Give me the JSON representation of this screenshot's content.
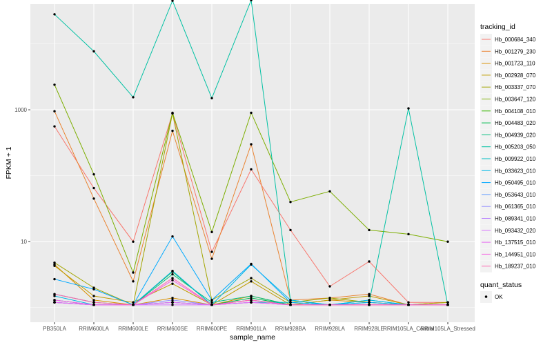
{
  "chart_data": {
    "type": "line",
    "xlabel": "sample_name",
    "ylabel": "FPKM + 1",
    "y_scale": "log10",
    "ylim": [
      0.6,
      40000
    ],
    "y_ticks": [
      10,
      1000
    ],
    "grid": true,
    "legend_placement": "right",
    "categories": [
      "PB350LA",
      "RRIM600LA",
      "RRIM600LE",
      "RRIM600SE",
      "RRIM600PE",
      "RRIM901LA",
      "RRIM928BA",
      "RRIM928LA",
      "RRIM928LE",
      "RRIM105LA_Control",
      "RRIM105LA_Stressed"
    ],
    "legend": {
      "tracking_id": {
        "title": "tracking_id",
        "entries": [
          "Hb_000684_340",
          "Hb_001279_230",
          "Hb_001723_110",
          "Hb_002928_070",
          "Hb_003337_070",
          "Hb_003647_120",
          "Hb_004108_010",
          "Hb_004483_020",
          "Hb_004939_020",
          "Hb_005203_050",
          "Hb_009922_010",
          "Hb_033623_010",
          "Hb_050495_010",
          "Hb_053643_010",
          "Hb_061365_010",
          "Hb_089341_010",
          "Hb_093432_020",
          "Hb_137515_010",
          "Hb_144951_010",
          "Hb_189237_010"
        ]
      },
      "quant_status": {
        "title": "quant_status",
        "entries": [
          "OK"
        ]
      }
    },
    "series": [
      {
        "name": "Hb_000684_340",
        "color": "#F8766D",
        "values": [
          560,
          65,
          10,
          880,
          7,
          125,
          15,
          2.1,
          5,
          1.2,
          1.2
        ]
      },
      {
        "name": "Hb_001279_230",
        "color": "#EA8331",
        "values": [
          950,
          45,
          2.5,
          480,
          5.5,
          300,
          1.3,
          1.4,
          1.6,
          1.1,
          1.2
        ]
      },
      {
        "name": "Hb_001723_110",
        "color": "#D89000",
        "values": [
          4.5,
          1.3,
          1.1,
          1.4,
          1.1,
          1.5,
          1.1,
          1.3,
          1.2,
          1.1,
          1.1
        ]
      },
      {
        "name": "Hb_002928_070",
        "color": "#C09B00",
        "values": [
          4.3,
          1.5,
          1.2,
          2.3,
          1.1,
          2.5,
          1.1,
          1.3,
          1.5,
          1.1,
          1.2
        ]
      },
      {
        "name": "Hb_003337_070",
        "color": "#A3A500",
        "values": [
          4.8,
          2.0,
          1.1,
          880,
          1.3,
          2.8,
          1.2,
          1.4,
          1.2,
          1.1,
          1.2
        ]
      },
      {
        "name": "Hb_003647_120",
        "color": "#7CAE00",
        "values": [
          2400,
          105,
          3.4,
          900,
          14,
          900,
          40,
          58,
          15,
          13,
          10
        ]
      },
      {
        "name": "Hb_004108_010",
        "color": "#39B600",
        "values": [
          1.2,
          1.1,
          1.1,
          1.2,
          1.1,
          1.3,
          1.1,
          1.1,
          1.1,
          1.1,
          1.1
        ]
      },
      {
        "name": "Hb_004483_020",
        "color": "#00BB4E",
        "values": [
          1.3,
          1.1,
          1.1,
          3.5,
          1.1,
          1.4,
          1.1,
          1.1,
          1.1,
          1.1,
          1.1
        ]
      },
      {
        "name": "Hb_004939_020",
        "color": "#00BF7D",
        "values": [
          1.6,
          1.2,
          1.1,
          3.2,
          1.2,
          1.5,
          1.1,
          1.1,
          1.1,
          1.1,
          1.1
        ]
      },
      {
        "name": "Hb_005203_050",
        "color": "#00C1A3",
        "values": [
          28000,
          7700,
          1550,
          45000,
          1500,
          46000,
          1.3,
          1.1,
          1.2,
          1050,
          1.1
        ]
      },
      {
        "name": "Hb_009922_010",
        "color": "#00BFC4",
        "values": [
          1.2,
          1.1,
          1.1,
          1.2,
          1.1,
          1.2,
          1.2,
          1.1,
          1.3,
          1.1,
          1.1
        ]
      },
      {
        "name": "Hb_033623_010",
        "color": "#00B8E7",
        "values": [
          1.5,
          1.1,
          1.1,
          3.6,
          1.1,
          4.5,
          1.3,
          1.1,
          1.3,
          1.1,
          1.1
        ]
      },
      {
        "name": "Hb_050495_010",
        "color": "#00A9FF",
        "values": [
          2.7,
          1.9,
          1.1,
          12,
          1.3,
          4.6,
          1.2,
          1.1,
          1.2,
          1.1,
          1.1
        ]
      },
      {
        "name": "Hb_053643_010",
        "color": "#619CFF",
        "values": [
          1.2,
          1.1,
          1.1,
          1.2,
          1.1,
          1.2,
          1.1,
          1.1,
          1.1,
          1.1,
          1.1
        ]
      },
      {
        "name": "Hb_061365_010",
        "color": "#9590FF",
        "values": [
          1.3,
          1.1,
          1.1,
          1.3,
          1.1,
          1.3,
          1.1,
          1.1,
          1.1,
          1.1,
          1.1
        ]
      },
      {
        "name": "Hb_089341_010",
        "color": "#B983FF",
        "values": [
          1.2,
          1.1,
          1.1,
          1.2,
          1.1,
          1.2,
          1.1,
          1.1,
          1.1,
          1.1,
          1.1
        ]
      },
      {
        "name": "Hb_093432_020",
        "color": "#D575FE",
        "values": [
          1.2,
          1.1,
          1.1,
          1.1,
          1.1,
          1.2,
          1.1,
          1.1,
          1.1,
          1.1,
          1.1
        ]
      },
      {
        "name": "Hb_137515_010",
        "color": "#E76BF3",
        "values": [
          1.2,
          1.1,
          1.1,
          1.2,
          1.1,
          1.2,
          1.1,
          1.1,
          1.1,
          1.1,
          1.1
        ]
      },
      {
        "name": "Hb_144951_010",
        "color": "#F564E3",
        "values": [
          1.3,
          1.1,
          1.1,
          2.6,
          1.1,
          1.3,
          1.1,
          1.1,
          1.1,
          1.1,
          1.1
        ]
      },
      {
        "name": "Hb_189237_010",
        "color": "#FF64B0",
        "values": [
          1.6,
          1.2,
          1.1,
          2.8,
          1.1,
          1.3,
          1.1,
          1.1,
          1.1,
          1.1,
          1.1
        ]
      }
    ]
  }
}
